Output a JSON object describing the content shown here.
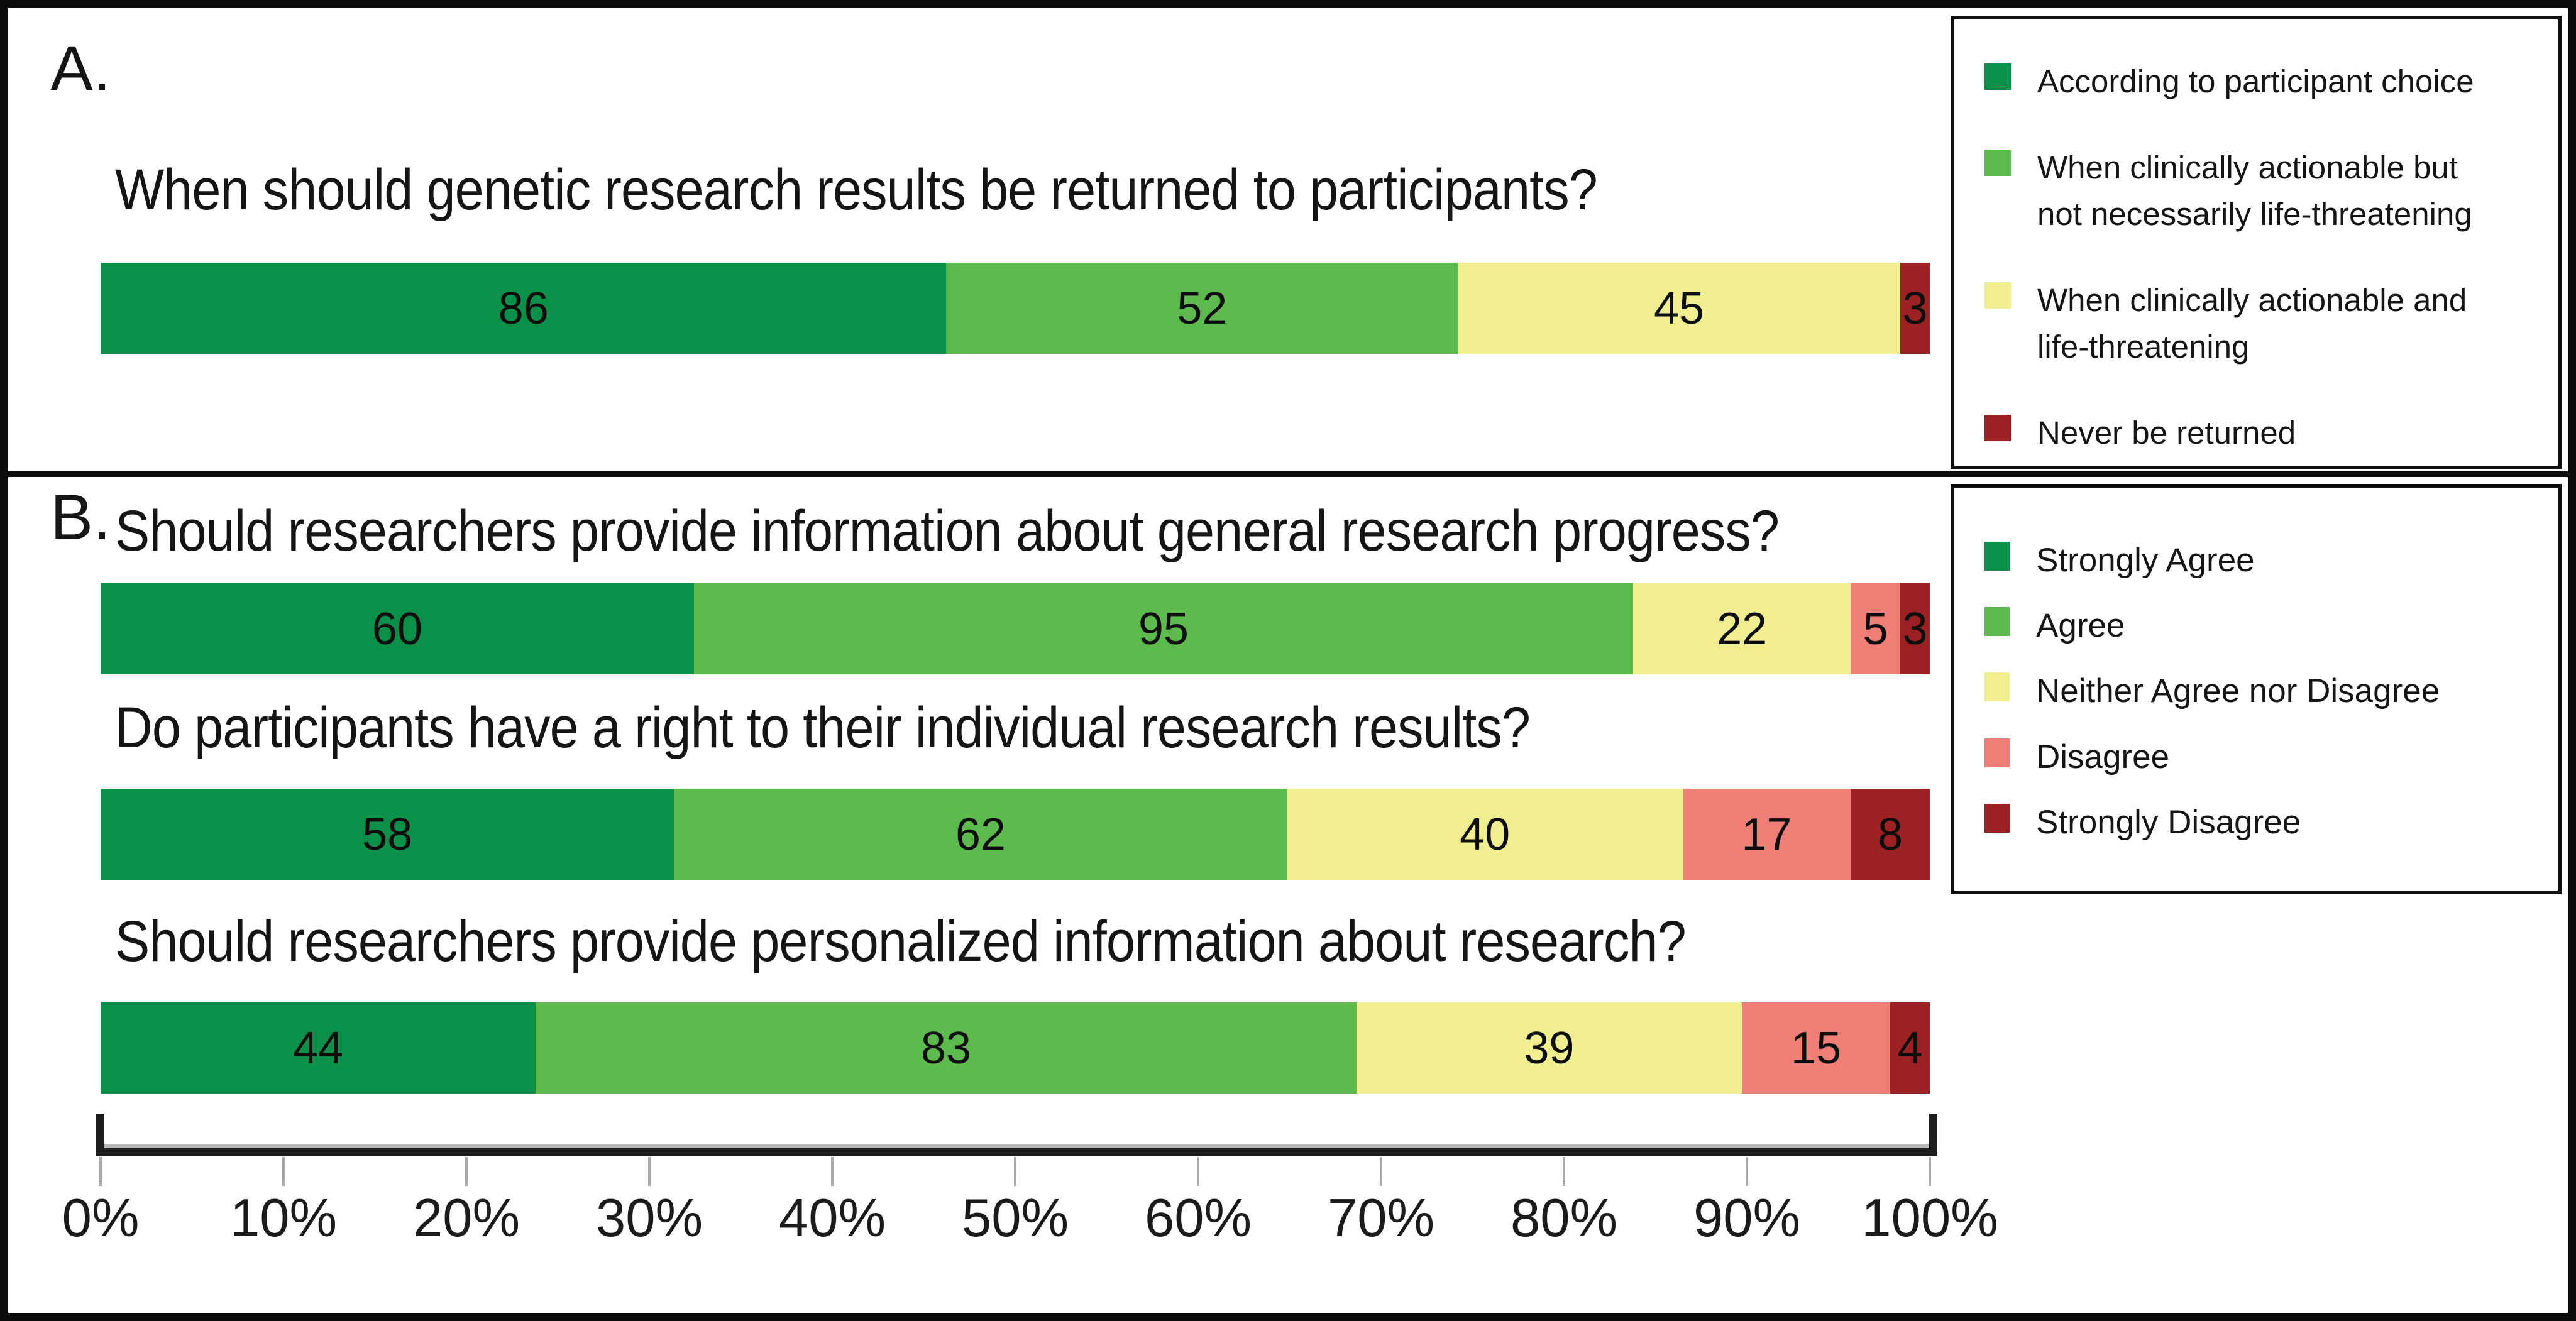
{
  "figure": {
    "panel_a": {
      "label": "A.",
      "question": "When should genetic research results be returned to participants?",
      "values": [
        86,
        52,
        45,
        3
      ],
      "colors": [
        "#0A9049",
        "#5CBB4C",
        "#F1EE90",
        "#9C2123"
      ],
      "legend_items": [
        {
          "label": "According to participant choice",
          "color": "#0A9049"
        },
        {
          "label": "When clinically actionable but\nnot necessarily life-threatening",
          "color": "#5CBB4C"
        },
        {
          "label": "When clinically actionable and\nlife-threatening",
          "color": "#F1EE90"
        },
        {
          "label": "Never be returned",
          "color": "#9C2123"
        }
      ]
    },
    "panel_b": {
      "label": "B.",
      "colors": [
        "#0A9049",
        "#5CBB4C",
        "#F1EE90",
        "#EF7E76",
        "#9C2123"
      ],
      "rows": [
        {
          "question": "Should researchers provide information about general research progress?",
          "values": [
            60,
            95,
            22,
            5,
            3
          ]
        },
        {
          "question": "Do participants have a right to their individual research results?",
          "values": [
            58,
            62,
            40,
            17,
            8
          ]
        },
        {
          "question": "Should researchers provide personalized information about research?",
          "values": [
            44,
            83,
            39,
            15,
            4
          ]
        }
      ],
      "legend_items": [
        {
          "label": "Strongly Agree",
          "color": "#0A9049"
        },
        {
          "label": "Agree",
          "color": "#5CBB4C"
        },
        {
          "label": "Neither Agree nor Disagree",
          "color": "#F1EE90"
        },
        {
          "label": "Disagree",
          "color": "#EF7E76"
        },
        {
          "label": "Strongly Disagree",
          "color": "#9C2123"
        }
      ]
    },
    "axis": {
      "tick_labels": [
        "0%",
        "10%",
        "20%",
        "30%",
        "40%",
        "50%",
        "60%",
        "70%",
        "80%",
        "90%",
        "100%"
      ]
    }
  },
  "chart_data": [
    {
      "type": "bar",
      "panel": "A",
      "orientation": "horizontal",
      "stacked": true,
      "normalized_to_percent": true,
      "title": "When should genetic research results be returned to participants?",
      "categories": [
        "When should genetic research results be returned to participants?"
      ],
      "series": [
        {
          "name": "According to participant choice",
          "values": [
            86
          ],
          "color": "#0A9049"
        },
        {
          "name": "When clinically actionable but not necessarily life-threatening",
          "values": [
            52
          ],
          "color": "#5CBB4C"
        },
        {
          "name": "When clinically actionable and life-threatening",
          "values": [
            45
          ],
          "color": "#F1EE90"
        },
        {
          "name": "Never be returned",
          "values": [
            3
          ],
          "color": "#9C2123"
        }
      ],
      "xlabel": "",
      "ylabel": "",
      "x_axis": {
        "range": [
          0,
          100
        ],
        "tick_labels": [
          "0%",
          "10%",
          "20%",
          "30%",
          "40%",
          "50%",
          "60%",
          "70%",
          "80%",
          "90%",
          "100%"
        ]
      },
      "legend_position": "right",
      "grid": false,
      "data_labels": "raw counts shown inside segments"
    },
    {
      "type": "bar",
      "panel": "B",
      "orientation": "horizontal",
      "stacked": true,
      "normalized_to_percent": true,
      "categories": [
        "Should researchers provide information about general research progress?",
        "Do participants have a right to their individual research results?",
        "Should researchers provide personalized information about research?"
      ],
      "series": [
        {
          "name": "Strongly Agree",
          "values": [
            60,
            58,
            44
          ],
          "color": "#0A9049"
        },
        {
          "name": "Agree",
          "values": [
            95,
            62,
            83
          ],
          "color": "#5CBB4C"
        },
        {
          "name": "Neither Agree nor Disagree",
          "values": [
            22,
            40,
            39
          ],
          "color": "#F1EE90"
        },
        {
          "name": "Disagree",
          "values": [
            5,
            17,
            15
          ],
          "color": "#EF7E76"
        },
        {
          "name": "Strongly Disagree",
          "values": [
            3,
            8,
            4
          ],
          "color": "#9C2123"
        }
      ],
      "xlabel": "",
      "ylabel": "",
      "x_axis": {
        "range": [
          0,
          100
        ],
        "tick_labels": [
          "0%",
          "10%",
          "20%",
          "30%",
          "40%",
          "50%",
          "60%",
          "70%",
          "80%",
          "90%",
          "100%"
        ]
      },
      "legend_position": "right",
      "grid": false,
      "data_labels": "raw counts shown inside segments"
    }
  ]
}
